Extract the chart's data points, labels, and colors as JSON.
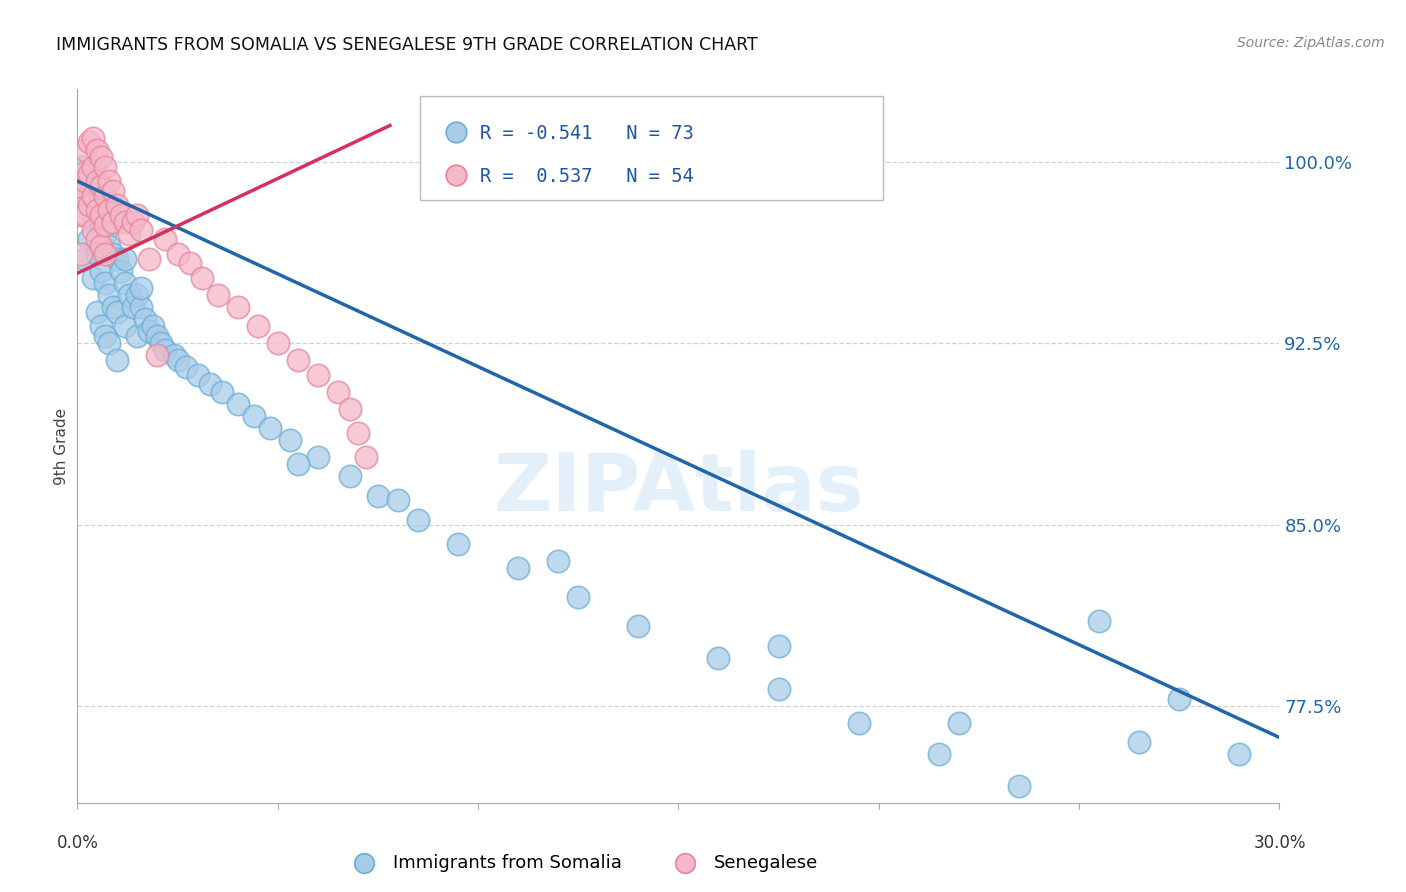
{
  "title": "IMMIGRANTS FROM SOMALIA VS SENEGALESE 9TH GRADE CORRELATION CHART",
  "source": "Source: ZipAtlas.com",
  "ylabel": "9th Grade",
  "ytick_labels": [
    "100.0%",
    "92.5%",
    "85.0%",
    "77.5%"
  ],
  "ytick_values": [
    1.0,
    0.925,
    0.85,
    0.775
  ],
  "xlim": [
    0.0,
    0.3
  ],
  "ylim": [
    0.735,
    1.03
  ],
  "blue_R": "-0.541",
  "blue_N": "73",
  "pink_R": "0.537",
  "pink_N": "54",
  "legend_label_blue": "Immigrants from Somalia",
  "legend_label_pink": "Senegalese",
  "blue_color": "#a8cce8",
  "pink_color": "#f4b8c8",
  "blue_edge": "#6aaed6",
  "pink_edge": "#e8849a",
  "trend_blue": "#2166ac",
  "trend_pink": "#d63060",
  "blue_scatter_x": [
    0.001,
    0.002,
    0.002,
    0.003,
    0.003,
    0.004,
    0.004,
    0.005,
    0.005,
    0.005,
    0.006,
    0.006,
    0.006,
    0.007,
    0.007,
    0.007,
    0.008,
    0.008,
    0.008,
    0.009,
    0.009,
    0.01,
    0.01,
    0.01,
    0.011,
    0.012,
    0.012,
    0.013,
    0.014,
    0.015,
    0.015,
    0.016,
    0.017,
    0.018,
    0.019,
    0.02,
    0.021,
    0.022,
    0.024,
    0.025,
    0.027,
    0.03,
    0.033,
    0.036,
    0.04,
    0.044,
    0.048,
    0.053,
    0.06,
    0.068,
    0.075,
    0.085,
    0.095,
    0.11,
    0.125,
    0.14,
    0.16,
    0.175,
    0.195,
    0.215,
    0.235,
    0.255,
    0.275,
    0.008,
    0.012,
    0.016,
    0.055,
    0.08,
    0.12,
    0.175,
    0.22,
    0.265,
    0.29
  ],
  "blue_scatter_y": [
    0.998,
    0.985,
    0.96,
    0.99,
    0.968,
    0.978,
    0.952,
    0.982,
    0.962,
    0.938,
    0.975,
    0.955,
    0.932,
    0.97,
    0.95,
    0.928,
    0.965,
    0.945,
    0.925,
    0.962,
    0.94,
    0.96,
    0.938,
    0.918,
    0.955,
    0.95,
    0.932,
    0.945,
    0.94,
    0.945,
    0.928,
    0.94,
    0.935,
    0.93,
    0.932,
    0.928,
    0.925,
    0.922,
    0.92,
    0.918,
    0.915,
    0.912,
    0.908,
    0.905,
    0.9,
    0.895,
    0.89,
    0.885,
    0.878,
    0.87,
    0.862,
    0.852,
    0.842,
    0.832,
    0.82,
    0.808,
    0.795,
    0.782,
    0.768,
    0.755,
    0.742,
    0.81,
    0.778,
    0.975,
    0.96,
    0.948,
    0.875,
    0.86,
    0.835,
    0.8,
    0.768,
    0.76,
    0.755
  ],
  "pink_scatter_x": [
    0.0003,
    0.0005,
    0.001,
    0.001,
    0.001,
    0.002,
    0.002,
    0.002,
    0.003,
    0.003,
    0.003,
    0.004,
    0.004,
    0.004,
    0.004,
    0.005,
    0.005,
    0.005,
    0.005,
    0.006,
    0.006,
    0.006,
    0.006,
    0.007,
    0.007,
    0.007,
    0.007,
    0.008,
    0.008,
    0.009,
    0.009,
    0.01,
    0.011,
    0.012,
    0.013,
    0.014,
    0.015,
    0.016,
    0.018,
    0.02,
    0.022,
    0.025,
    0.028,
    0.031,
    0.035,
    0.04,
    0.045,
    0.05,
    0.055,
    0.06,
    0.065,
    0.068,
    0.07,
    0.072
  ],
  "pink_scatter_y": [
    0.985,
    0.99,
    0.995,
    0.978,
    0.962,
    1.005,
    0.992,
    0.978,
    1.008,
    0.995,
    0.982,
    1.01,
    0.998,
    0.986,
    0.972,
    1.005,
    0.992,
    0.98,
    0.968,
    1.002,
    0.99,
    0.978,
    0.965,
    0.998,
    0.986,
    0.974,
    0.962,
    0.992,
    0.98,
    0.988,
    0.975,
    0.982,
    0.978,
    0.975,
    0.97,
    0.975,
    0.978,
    0.972,
    0.96,
    0.92,
    0.968,
    0.962,
    0.958,
    0.952,
    0.945,
    0.94,
    0.932,
    0.925,
    0.918,
    0.912,
    0.905,
    0.898,
    0.888,
    0.878
  ],
  "blue_trend_x": [
    0.0,
    0.3
  ],
  "blue_trend_y": [
    0.992,
    0.762
  ],
  "pink_trend_x": [
    -0.005,
    0.078
  ],
  "pink_trend_y": [
    0.95,
    1.015
  ],
  "watermark": "ZIPAtlas",
  "background_color": "#ffffff",
  "grid_color": "#cccccc"
}
